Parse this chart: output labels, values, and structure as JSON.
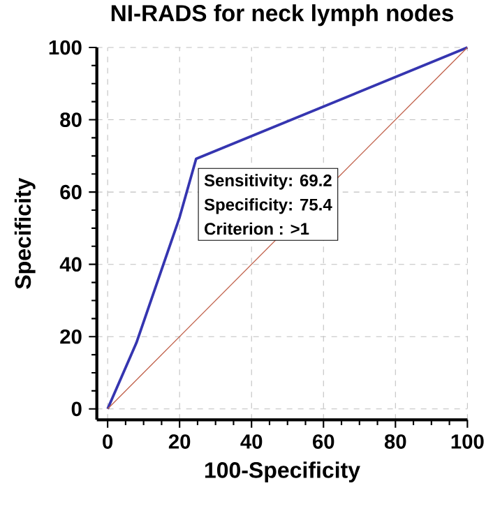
{
  "chart_data": {
    "type": "line",
    "title": "NI-RADS for neck lymph nodes",
    "xlabel": "100-Specificity",
    "ylabel": "Specificity",
    "series": [
      {
        "color": "#3535b0",
        "x": [
          0,
          8,
          20,
          24.6,
          100
        ],
        "values": [
          0,
          18.3,
          53,
          69.2,
          100
        ]
      },
      {
        "color": "#c0604a",
        "x": [
          0,
          100
        ],
        "values": [
          0,
          100
        ]
      }
    ],
    "annotations": [
      {
        "text": "Sensitivity: 69.2",
        "x": 24.6,
        "y": 69.2
      },
      "Specificity: 75.4",
      "Criterion : >1"
    ],
    "xlim": [
      -3,
      100
    ],
    "ylim": [
      -3,
      100
    ],
    "xticks": [
      0,
      20,
      40,
      60,
      80,
      100
    ],
    "yticks": [
      0,
      20,
      40,
      60,
      80,
      100
    ],
    "grid": true,
    "marker": "none",
    "line_style": "solid"
  }
}
